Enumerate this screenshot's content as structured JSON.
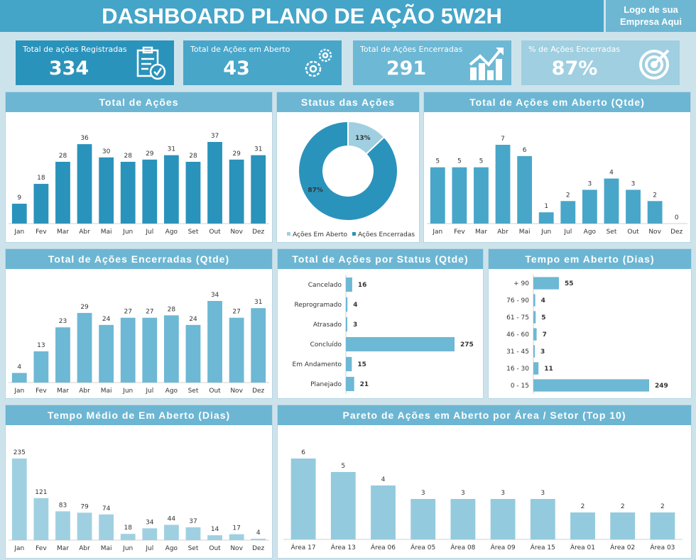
{
  "header": {
    "title": "DASHBOARD PLANO DE AÇÃO 5W2H",
    "logo_line1": "Logo de sua",
    "logo_line2": "Empresa Aqui"
  },
  "kpis": [
    {
      "label": "Total de ações Registradas",
      "value": "334",
      "icon": "clipboard-check-icon",
      "color": "#2a93bb"
    },
    {
      "label": "Total de Ações em Aberto",
      "value": "43",
      "icon": "gears-icon",
      "color": "#48a6c9"
    },
    {
      "label": "Total de Ações Encerradas",
      "value": "291",
      "icon": "growth-chart-icon",
      "color": "#6db8d4"
    },
    {
      "label": "% de Ações Encerradas",
      "value": "87%",
      "icon": "target-icon",
      "color": "#9fcfe0"
    }
  ],
  "chart_data": [
    {
      "id": "total",
      "type": "bar",
      "title": "Total de Ações",
      "categories": [
        "Jan",
        "Fev",
        "Mar",
        "Abr",
        "Mai",
        "Jun",
        "Jul",
        "Ago",
        "Set",
        "Out",
        "Nov",
        "Dez"
      ],
      "values": [
        9,
        18,
        28,
        36,
        30,
        28,
        29,
        31,
        28,
        37,
        29,
        31
      ],
      "color": "#2a93bb",
      "grid": false
    },
    {
      "id": "status",
      "type": "pie",
      "title": "Status das Ações",
      "categories": [
        "Ações Em Aberto",
        "Ações Encerradas"
      ],
      "values": [
        13,
        87
      ],
      "labels": [
        "13%",
        "87%"
      ],
      "colors": [
        "#9fcfe0",
        "#2a93bb"
      ],
      "legend": "bottom"
    },
    {
      "id": "open",
      "type": "bar",
      "title": "Total de Ações em Aberto (Qtde)",
      "categories": [
        "Jan",
        "Fev",
        "Mar",
        "Abr",
        "Mai",
        "Jun",
        "Jul",
        "Ago",
        "Set",
        "Out",
        "Nov",
        "Dez"
      ],
      "values": [
        5,
        5,
        5,
        7,
        6,
        1,
        2,
        3,
        4,
        3,
        2,
        0
      ],
      "color": "#48a6c9",
      "grid": false
    },
    {
      "id": "closed",
      "type": "bar",
      "title": "Total de Ações Encerradas (Qtde)",
      "categories": [
        "Jan",
        "Fev",
        "Mar",
        "Abr",
        "Mai",
        "Jun",
        "Jul",
        "Ago",
        "Set",
        "Out",
        "Nov",
        "Dez"
      ],
      "values": [
        4,
        13,
        23,
        29,
        24,
        27,
        27,
        28,
        24,
        34,
        27,
        31
      ],
      "color": "#6db8d4",
      "grid": false
    },
    {
      "id": "bystatus",
      "type": "bar",
      "orientation": "horizontal",
      "title": "Total de Ações por Status (Qtde)",
      "categories": [
        "Cancelado",
        "Reprogramado",
        "Atrasado",
        "Concluído",
        "Em Andamento",
        "Planejado"
      ],
      "values": [
        16,
        4,
        3,
        275,
        15,
        21
      ],
      "color": "#6db8d4",
      "grid": false
    },
    {
      "id": "tempo",
      "type": "bar",
      "orientation": "horizontal",
      "title": "Tempo em Aberto (Dias)",
      "categories": [
        "+ 90",
        "76 - 90",
        "61 - 75",
        "46 - 60",
        "31 - 45",
        "16 - 30",
        "0 - 15"
      ],
      "values": [
        55,
        4,
        5,
        7,
        3,
        11,
        249
      ],
      "color": "#6db8d4",
      "grid": false
    },
    {
      "id": "medio",
      "type": "bar",
      "title": "Tempo Médio de Em Aberto (Dias)",
      "categories": [
        "Jan",
        "Fev",
        "Mar",
        "Abr",
        "Mai",
        "Jun",
        "Jul",
        "Ago",
        "Set",
        "Out",
        "Nov",
        "Dez"
      ],
      "values": [
        235,
        121,
        83,
        79,
        74,
        18,
        34,
        44,
        37,
        14,
        17,
        4
      ],
      "color": "#9fd0e2",
      "grid": false
    },
    {
      "id": "pareto",
      "type": "bar",
      "title": "Pareto de Ações em Aberto por Área / Setor (Top 10)",
      "categories": [
        "Área 17",
        "Área 13",
        "Área 06",
        "Área 05",
        "Área 08",
        "Área 09",
        "Área 15",
        "Área 01",
        "Área 02",
        "Área 03"
      ],
      "values": [
        6,
        5,
        4,
        3,
        3,
        3,
        3,
        2,
        2,
        2
      ],
      "color": "#94cade",
      "grid": false
    }
  ]
}
